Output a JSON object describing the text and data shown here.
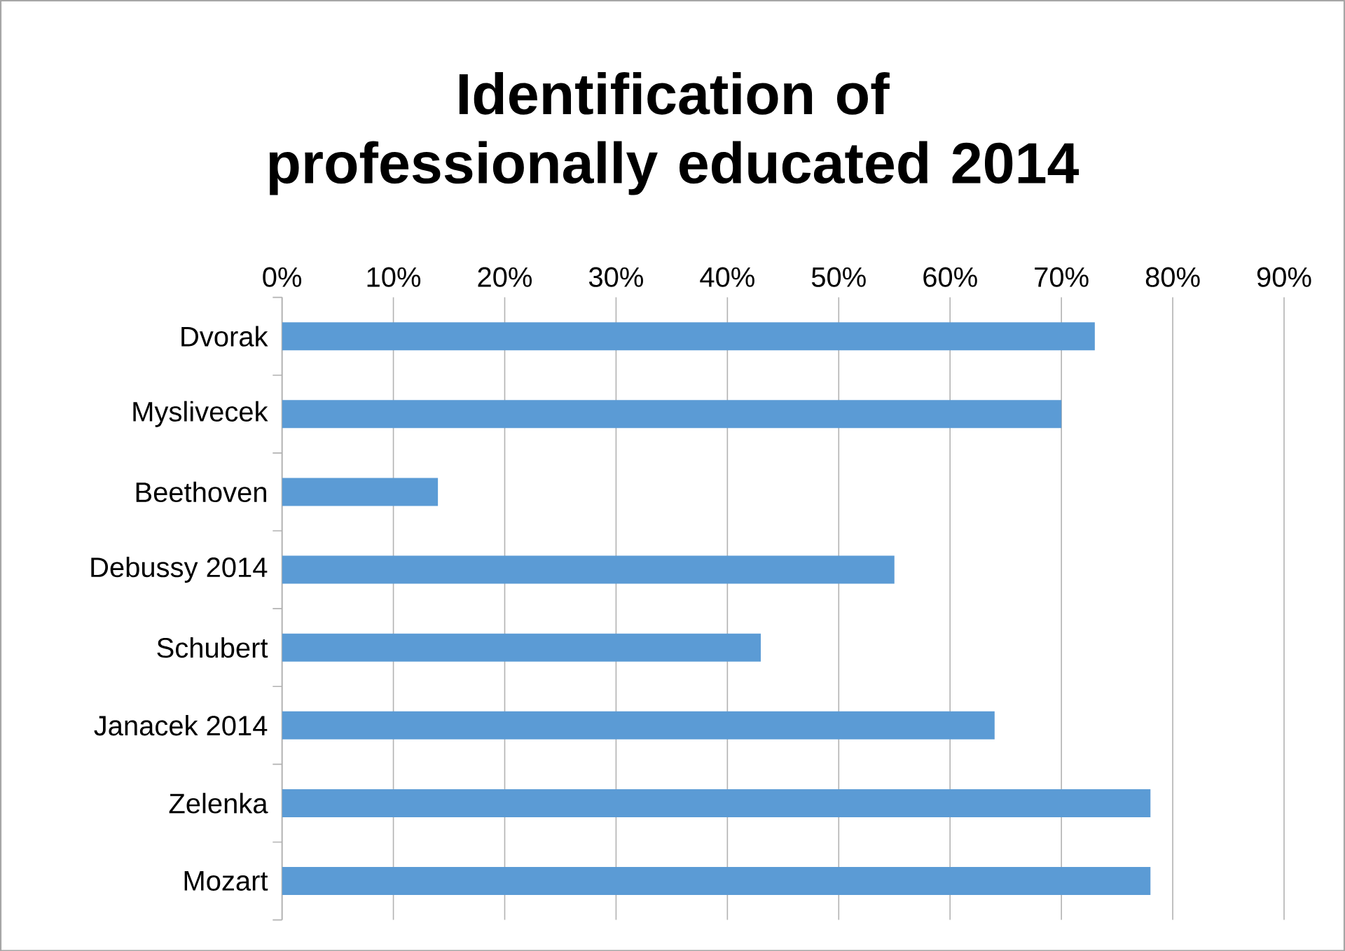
{
  "chart_data": {
    "type": "bar",
    "orientation": "horizontal",
    "title": "Identification of professionally educated 2014",
    "categories": [
      "Dvorak",
      "Myslivecek",
      "Beethoven",
      "Debussy 2014",
      "Schubert",
      "Janacek 2014",
      "Zelenka",
      "Mozart"
    ],
    "values": [
      73,
      70,
      14,
      55,
      43,
      64,
      78,
      78
    ],
    "color": "#5b9bd5",
    "grid": "x",
    "xlim": [
      0,
      90
    ],
    "xticks": [
      {
        "value": 0,
        "label": "0%"
      },
      {
        "value": 10,
        "label": "10%"
      },
      {
        "value": 20,
        "label": "20%"
      },
      {
        "value": 30,
        "label": "30%"
      },
      {
        "value": 40,
        "label": "40%"
      },
      {
        "value": 50,
        "label": "50%"
      },
      {
        "value": 60,
        "label": "60%"
      },
      {
        "value": 70,
        "label": "70%"
      },
      {
        "value": 80,
        "label": "80%"
      },
      {
        "value": 90,
        "label": "90%"
      }
    ]
  }
}
